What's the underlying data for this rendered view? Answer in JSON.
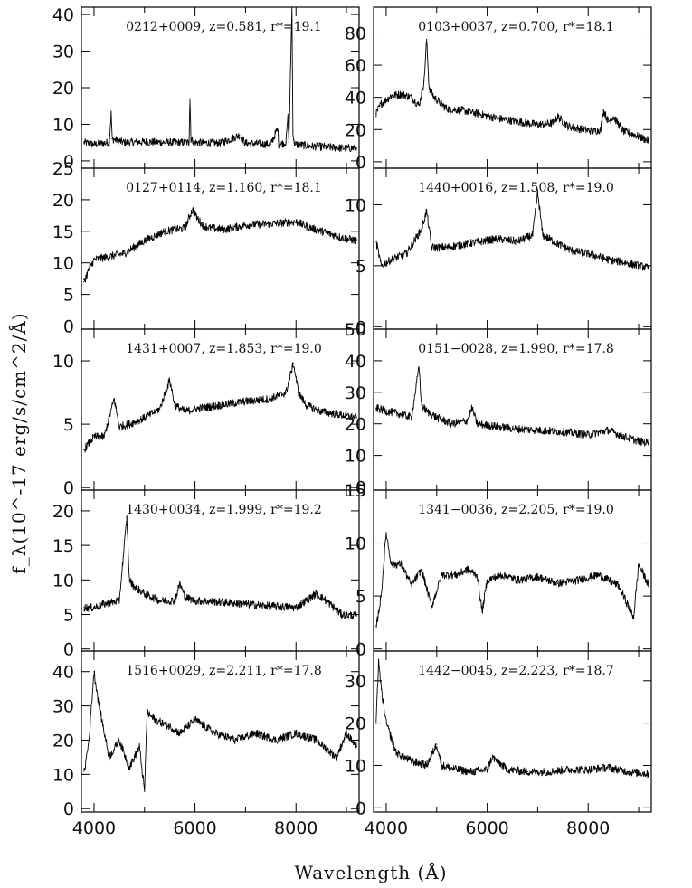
{
  "figure": {
    "xlabel": "Wavelength (Å)",
    "ylabel": "f_λ(10^-17 erg/s/cm^2/Å)"
  },
  "chart_data": [
    {
      "type": "line",
      "label": "0212+0009, z=0.581, r*=19.1",
      "xlim": [
        3750,
        9250
      ],
      "ylim": [
        -2,
        42
      ],
      "xticks": [
        4000,
        6000,
        8000
      ],
      "yticks": [
        0,
        10,
        20,
        30,
        40
      ],
      "x": [
        3800,
        4000,
        4300,
        4340,
        4360,
        4600,
        5000,
        5500,
        5880,
        5900,
        5920,
        6000,
        6500,
        6880,
        7000,
        7500,
        7640,
        7660,
        7800,
        7840,
        7860,
        7920,
        7940,
        7960,
        8000,
        8300,
        8600,
        8900,
        9200
      ],
      "y": [
        5,
        4.5,
        5,
        13,
        6,
        5,
        5.2,
        5,
        5,
        17,
        6,
        5,
        4.8,
        7,
        4.8,
        4.5,
        9,
        4.5,
        5,
        12,
        5,
        42,
        8,
        5,
        4.5,
        4,
        3.8,
        3.5,
        3.5
      ]
    },
    {
      "type": "line",
      "label": "0103+0037, z=0.700, r*=18.1",
      "xlim": [
        3750,
        9250
      ],
      "ylim": [
        -4,
        96
      ],
      "xticks": [
        4000,
        6000,
        8000
      ],
      "yticks": [
        0,
        20,
        40,
        60,
        80
      ],
      "x": [
        3800,
        3900,
        4100,
        4300,
        4500,
        4650,
        4750,
        4800,
        4850,
        4950,
        5200,
        5500,
        5800,
        6200,
        6600,
        7000,
        7300,
        7400,
        7600,
        7900,
        8100,
        8250,
        8300,
        8400,
        8500,
        8700,
        8900,
        9200
      ],
      "y": [
        30,
        36,
        41,
        42,
        40,
        35,
        50,
        76,
        46,
        40,
        33,
        32,
        30,
        27,
        25,
        23,
        24,
        28,
        22,
        20,
        19,
        20,
        32,
        25,
        28,
        19,
        17,
        13
      ]
    },
    {
      "type": "line",
      "label": "0127+0114, z=1.160, r*=18.1",
      "xlim": [
        3750,
        9250
      ],
      "ylim": [
        -0.5,
        25
      ],
      "xticks": [
        4000,
        6000,
        8000
      ],
      "yticks": [
        0,
        5,
        10,
        15,
        20,
        25
      ],
      "x": [
        3800,
        3900,
        4000,
        4300,
        4600,
        5000,
        5400,
        5800,
        5950,
        6050,
        6150,
        6300,
        6600,
        7000,
        7500,
        8000,
        8300,
        8600,
        8900,
        9200
      ],
      "y": [
        7,
        9,
        10.5,
        11,
        11.5,
        13.5,
        15,
        15.5,
        18.5,
        17,
        16,
        15.5,
        15.3,
        16,
        16.2,
        16.5,
        15.5,
        14.8,
        14,
        13.5
      ]
    },
    {
      "type": "line",
      "label": "1440+0016, z=1.508, r*=19.0",
      "xlim": [
        3750,
        9250
      ],
      "ylim": [
        -0.2,
        13
      ],
      "xticks": [
        4000,
        6000,
        8000
      ],
      "yticks": [
        0,
        5,
        10
      ],
      "x": [
        3800,
        3900,
        4100,
        4400,
        4700,
        4800,
        4900,
        5200,
        5600,
        5900,
        6200,
        6600,
        6900,
        7000,
        7100,
        7400,
        7700,
        8000,
        8400,
        8800,
        9200
      ],
      "y": [
        7,
        5,
        5.5,
        6,
        8,
        9.5,
        6.5,
        6.5,
        6.8,
        7,
        7.2,
        7,
        7.5,
        11,
        7.5,
        6.8,
        6.2,
        6,
        5.5,
        5.2,
        4.8
      ]
    },
    {
      "type": "line",
      "label": "1431+0007, z=1.853, r*=19.0",
      "xlim": [
        3750,
        9250
      ],
      "ylim": [
        -0.2,
        12.5
      ],
      "xticks": [
        4000,
        6000,
        8000
      ],
      "yticks": [
        0,
        5,
        10
      ],
      "x": [
        3800,
        4000,
        4200,
        4400,
        4500,
        4700,
        5000,
        5300,
        5500,
        5600,
        5800,
        6000,
        6500,
        7000,
        7500,
        7800,
        7950,
        8050,
        8200,
        8500,
        8800,
        9200
      ],
      "y": [
        3,
        4,
        4,
        7,
        4.8,
        5,
        5.5,
        6.2,
        8.5,
        6.5,
        6,
        6.2,
        6.5,
        6.8,
        7,
        7.5,
        9.8,
        7.5,
        6.5,
        6,
        5.8,
        5.5
      ]
    },
    {
      "type": "line",
      "label": "0151−0028, z=1.990, r*=17.8",
      "xlim": [
        3750,
        9250
      ],
      "ylim": [
        -1,
        50
      ],
      "xticks": [
        4000,
        6000,
        8000
      ],
      "yticks": [
        0,
        10,
        20,
        30,
        40,
        50
      ],
      "x": [
        3800,
        4000,
        4300,
        4500,
        4650,
        4700,
        4800,
        5000,
        5300,
        5600,
        5700,
        5800,
        6000,
        6500,
        7000,
        7500,
        8000,
        8400,
        8700,
        9000,
        9200
      ],
      "y": [
        25,
        24,
        23,
        22,
        38,
        26,
        24,
        22,
        20,
        21,
        25,
        20,
        19.5,
        18.5,
        18,
        17.5,
        16.5,
        18,
        16,
        14.5,
        14
      ]
    },
    {
      "type": "line",
      "label": "1430+0034, z=1.999, r*=19.2",
      "xlim": [
        3750,
        9250
      ],
      "ylim": [
        -0.3,
        23
      ],
      "xticks": [
        4000,
        6000,
        8000
      ],
      "yticks": [
        0,
        5,
        10,
        15,
        20
      ],
      "x": [
        3800,
        4000,
        4200,
        4500,
        4650,
        4700,
        4800,
        5000,
        5300,
        5600,
        5700,
        5800,
        6000,
        6500,
        7000,
        7500,
        8000,
        8400,
        8600,
        8900,
        9200
      ],
      "y": [
        6,
        6,
        6.5,
        7,
        19,
        10,
        9,
        8,
        7,
        7,
        9.5,
        7.5,
        7,
        6.8,
        6.5,
        6.2,
        6,
        8,
        7,
        5,
        4.8
      ]
    },
    {
      "type": "line",
      "label": "1341−0036, z=2.205, r*=19.0",
      "xlim": [
        3750,
        9250
      ],
      "ylim": [
        -0.2,
        15
      ],
      "xticks": [
        4000,
        6000,
        8000
      ],
      "yticks": [
        0,
        5,
        10,
        15
      ],
      "x": [
        3800,
        3900,
        4000,
        4100,
        4300,
        4500,
        4700,
        4900,
        5100,
        5400,
        5600,
        5800,
        5900,
        6000,
        6300,
        6600,
        7000,
        7400,
        7800,
        8200,
        8600,
        8900,
        9000,
        9200
      ],
      "y": [
        2,
        5,
        11,
        8,
        8,
        6,
        7.5,
        4,
        7,
        7,
        7.5,
        7,
        3.5,
        6.5,
        7,
        6.5,
        6.8,
        6.2,
        6.5,
        7,
        6,
        3,
        8,
        6
      ]
    },
    {
      "type": "line",
      "label": "1516+0029, z=2.211, r*=17.8",
      "xlim": [
        3750,
        9250
      ],
      "ylim": [
        -1,
        46
      ],
      "xticks": [
        4000,
        6000,
        8000
      ],
      "yticks": [
        0,
        10,
        20,
        30,
        40
      ],
      "x": [
        3800,
        3900,
        4000,
        4100,
        4300,
        4500,
        4700,
        4900,
        5000,
        5050,
        5200,
        5500,
        5700,
        6000,
        6400,
        6800,
        7200,
        7600,
        8000,
        8400,
        8800,
        9000,
        9200
      ],
      "y": [
        10,
        20,
        40,
        30,
        15,
        20,
        12,
        18,
        5,
        28,
        26,
        24,
        22,
        26,
        22,
        20,
        22,
        20,
        22,
        20,
        15,
        22,
        18
      ]
    },
    {
      "type": "line",
      "label": "1442−0045, z=2.223, r*=18.7",
      "xlim": [
        3750,
        9250
      ],
      "ylim": [
        -1,
        37
      ],
      "xticks": [
        4000,
        6000,
        8000
      ],
      "yticks": [
        0,
        10,
        20,
        30
      ],
      "x": [
        3800,
        3850,
        3900,
        4000,
        4200,
        4500,
        4800,
        5000,
        5100,
        5400,
        5700,
        6000,
        6100,
        6200,
        6400,
        6800,
        7200,
        7600,
        8000,
        8400,
        8800,
        9200
      ],
      "y": [
        20,
        35,
        28,
        20,
        13,
        11,
        10,
        15,
        10,
        9,
        8.5,
        9,
        12,
        11,
        9,
        8.5,
        8.5,
        9,
        9,
        9.5,
        8.5,
        8
      ]
    }
  ]
}
